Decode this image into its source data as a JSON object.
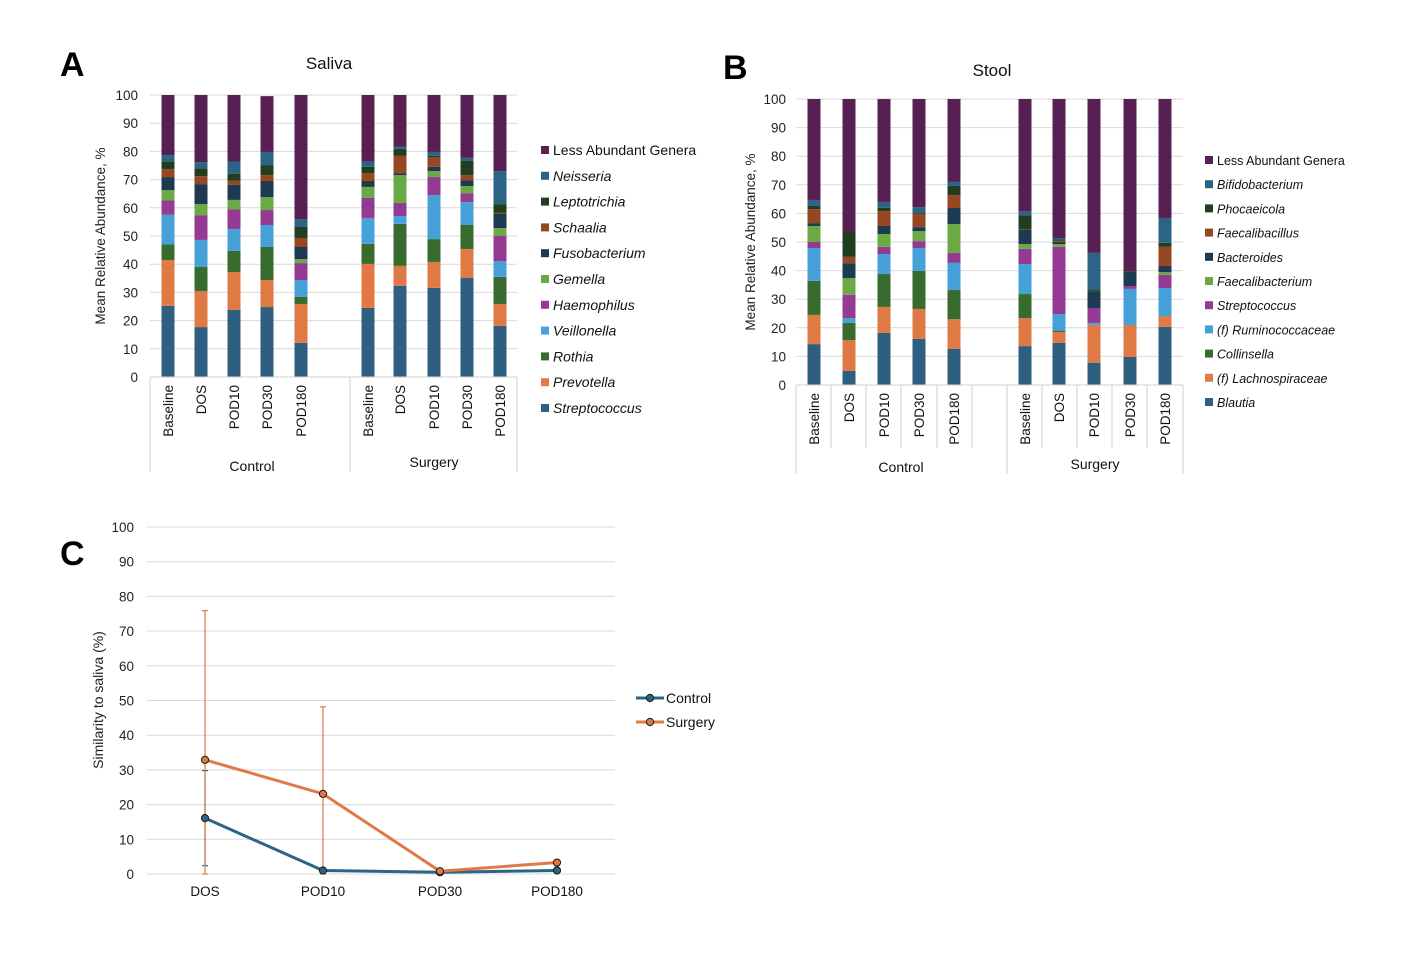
{
  "panels": {
    "A": "A",
    "B": "B",
    "C": "C"
  },
  "chart_data": [
    {
      "id": "saliva",
      "type": "bar",
      "stacked": true,
      "title": "Saliva",
      "ylabel": "Mean Relative Abundance, %",
      "ylim": [
        0,
        100
      ],
      "yticks": [
        0,
        10,
        20,
        30,
        40,
        50,
        60,
        70,
        80,
        90,
        100
      ],
      "grid": true,
      "legend_position": "right",
      "groups": [
        {
          "name": "Control",
          "categories": [
            "Baseline",
            "DOS",
            "POD10",
            "POD30",
            "POD180"
          ]
        },
        {
          "name": "Surgery",
          "categories": [
            "Baseline",
            "DOS",
            "POD10",
            "POD30",
            "POD180"
          ]
        }
      ],
      "series": [
        {
          "name": "Streptococcus",
          "italic": true,
          "color": "#2e5f80",
          "values": [
            25.2,
            17.7,
            23.8,
            24.8,
            12.1,
            24.5,
            32.3,
            31.6,
            35.1,
            18.1
          ]
        },
        {
          "name": "Prevotella",
          "italic": true,
          "color": "#df7a44",
          "values": [
            16.3,
            12.8,
            13.4,
            9.6,
            13.8,
            15.6,
            7.1,
            9.2,
            10.3,
            7.8
          ]
        },
        {
          "name": "Rothia",
          "italic": true,
          "color": "#376c2e",
          "values": [
            5.5,
            8.5,
            7.5,
            11.7,
            2.5,
            7.1,
            14.9,
            8.1,
            8.5,
            9.6
          ]
        },
        {
          "name": "Veillonella",
          "italic": true,
          "color": "#45a1d8",
          "values": [
            10.6,
            9.6,
            7.8,
            7.8,
            6.0,
            9.2,
            2.8,
            15.6,
            8.1,
            5.6
          ]
        },
        {
          "name": "Haemophilus",
          "italic": true,
          "color": "#943a92",
          "values": [
            5.0,
            8.8,
            6.9,
            5.3,
            6.0,
            7.1,
            4.6,
            6.4,
            3.2,
            8.9
          ]
        },
        {
          "name": "Gemella",
          "italic": true,
          "color": "#6aa944",
          "values": [
            3.7,
            3.9,
            3.4,
            4.6,
            1.4,
            3.9,
            9.9,
            2.1,
            2.5,
            2.8
          ]
        },
        {
          "name": "Fusobacterium",
          "italic": true,
          "color": "#1d3a52",
          "values": [
            4.6,
            7.1,
            5.4,
            5.7,
            4.3,
            2.1,
            0.7,
            1.5,
            2.1,
            5.0
          ]
        },
        {
          "name": "Schaalia",
          "italic": true,
          "color": "#964620",
          "values": [
            2.8,
            2.8,
            1.5,
            2.1,
            3.2,
            2.8,
            6.1,
            3.5,
            1.8,
            0.4
          ]
        },
        {
          "name": "Leptotrichia",
          "italic": true,
          "color": "#213e20",
          "values": [
            2.8,
            2.8,
            2.4,
            3.4,
            3.9,
            2.2,
            2.5,
            0.4,
            5.0,
            3.1
          ]
        },
        {
          "name": "Neisseria",
          "italic": true,
          "color": "#2b6485",
          "values": [
            2.2,
            2.2,
            4.3,
            4.8,
            2.8,
            1.8,
            0.7,
            1.4,
            1.1,
            11.7
          ]
        },
        {
          "name": "Less Abundant Genera",
          "italic": false,
          "color": "#582052",
          "values": [
            21.3,
            23.8,
            23.6,
            19.8,
            44.0,
            23.7,
            18.4,
            20.2,
            22.3,
            27.0
          ]
        }
      ]
    },
    {
      "id": "stool",
      "type": "bar",
      "stacked": true,
      "title": "Stool",
      "ylabel": "Mean Relative Abundance, %",
      "ylim": [
        0,
        100
      ],
      "yticks": [
        0,
        10,
        20,
        30,
        40,
        50,
        60,
        70,
        80,
        90,
        100
      ],
      "grid": true,
      "legend_position": "right",
      "groups": [
        {
          "name": "Control",
          "categories": [
            "Baseline",
            "DOS",
            "POD10",
            "POD30",
            "POD180"
          ]
        },
        {
          "name": "Surgery",
          "categories": [
            "Baseline",
            "DOS",
            "POD10",
            "POD30",
            "POD180"
          ]
        }
      ],
      "series": [
        {
          "name": "Blautia",
          "italic": true,
          "color": "#2e5f80",
          "values": [
            14.3,
            4.9,
            18.2,
            16.1,
            12.6,
            13.6,
            14.7,
            7.8,
            9.8,
            20.3
          ]
        },
        {
          "name": "(f) Lachnospiraceae",
          "italic": true,
          "color": "#df7a44",
          "values": [
            10.2,
            10.8,
            9.1,
            10.5,
            10.4,
            9.8,
            3.8,
            13.2,
            11.2,
            3.8
          ]
        },
        {
          "name": "Collinsella",
          "italic": true,
          "color": "#376c2e",
          "values": [
            11.9,
            6.0,
            11.5,
            13.3,
            10.2,
            8.4,
            0.5,
            0.0,
            0.0,
            0.0
          ]
        },
        {
          "name": "(f) Ruminococcaceae",
          "italic": true,
          "color": "#45a1d8",
          "values": [
            11.5,
            1.7,
            7.0,
            8.0,
            9.5,
            10.5,
            5.8,
            0.7,
            12.6,
            9.8
          ]
        },
        {
          "name": "Streptococcus",
          "italic": true,
          "color": "#943a92",
          "values": [
            2.1,
            8.1,
            2.5,
            2.4,
            3.5,
            5.3,
            23.5,
            5.2,
            1.0,
            4.6
          ]
        },
        {
          "name": "Faecalibacterium",
          "italic": true,
          "color": "#6aa944",
          "values": [
            5.6,
            5.9,
            4.5,
            3.5,
            10.1,
            1.7,
            1.0,
            0.0,
            0.0,
            1.0
          ]
        },
        {
          "name": "Bacteroides",
          "italic": true,
          "color": "#1d3a52",
          "values": [
            1.0,
            5.2,
            2.8,
            1.4,
            5.6,
            4.9,
            0.8,
            5.7,
            4.9,
            2.1
          ]
        },
        {
          "name": "Faecalibacillus",
          "italic": true,
          "color": "#964620",
          "values": [
            4.9,
            2.2,
            5.2,
            4.6,
            4.5,
            0.2,
            0.3,
            0.0,
            0.0,
            6.7
          ]
        },
        {
          "name": "Phocaeicola",
          "italic": true,
          "color": "#213e20",
          "values": [
            1.1,
            8.7,
            1.2,
            0.3,
            3.2,
            4.9,
            0.5,
            0.6,
            0.3,
            1.4
          ]
        },
        {
          "name": "Bifidobacterium",
          "italic": true,
          "color": "#2b6485",
          "values": [
            2.1,
            0.0,
            2.0,
            2.1,
            1.4,
            1.4,
            0.5,
            13.0,
            0.0,
            8.7
          ]
        },
        {
          "name": "Less Abundant Genera",
          "italic": false,
          "color": "#582052",
          "values": [
            35.3,
            46.5,
            36.0,
            37.8,
            29.0,
            39.3,
            48.6,
            53.8,
            60.2,
            41.6
          ]
        }
      ]
    },
    {
      "id": "similarity",
      "type": "line",
      "title": "",
      "xlabel": "",
      "ylabel": "Similarity to saliva (%)",
      "ylim": [
        0,
        100
      ],
      "yticks": [
        0,
        10,
        20,
        30,
        40,
        50,
        60,
        70,
        80,
        90,
        100
      ],
      "grid": true,
      "legend_position": "right",
      "categories": [
        "DOS",
        "POD10",
        "POD30",
        "POD180"
      ],
      "series": [
        {
          "name": "Control",
          "color": "#2b6485",
          "values": [
            16.1,
            1.0,
            0.5,
            1.0
          ],
          "error_upper": [
            29.8,
            1.5,
            0.8,
            1.2
          ],
          "error_lower": [
            2.4,
            0.5,
            0.3,
            0.8
          ]
        },
        {
          "name": "Surgery",
          "color": "#df7a44",
          "values": [
            32.9,
            23.1,
            0.8,
            3.3
          ],
          "error_upper": [
            75.9,
            48.2,
            1.0,
            3.5
          ],
          "error_lower": [
            0.0,
            0.0,
            0.6,
            3.1
          ]
        }
      ]
    }
  ]
}
